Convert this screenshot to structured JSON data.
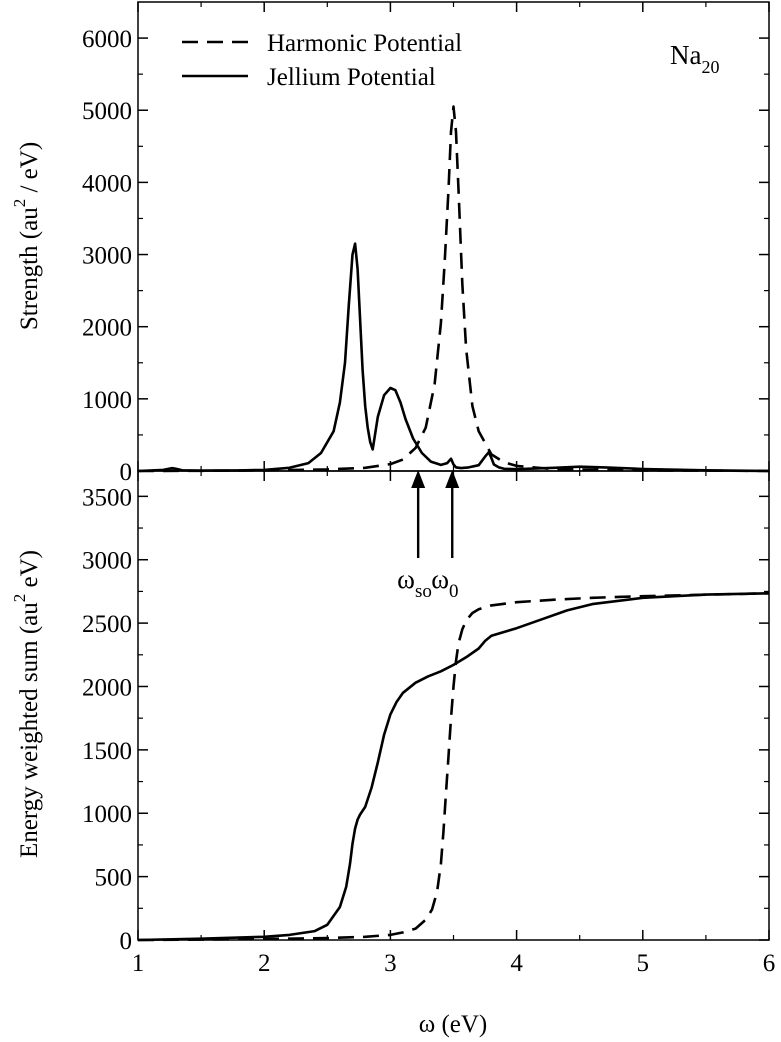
{
  "chart_data": [
    {
      "type": "line",
      "panel": "top",
      "ylabel": "Strength (au / eV)",
      "ylabel_parts": {
        "prefix": "Strength  (au",
        "sup": "2",
        "suffix": " / eV)"
      },
      "xlim": [
        1,
        6
      ],
      "ylim": [
        0,
        6500
      ],
      "yticks": [
        0,
        1000,
        2000,
        3000,
        4000,
        5000,
        6000
      ],
      "xticks": [
        1,
        2,
        3,
        4,
        5,
        6
      ],
      "grid": false,
      "legend_position": "top-left",
      "legend": [
        "Harmonic Potential",
        "Jellium Potential"
      ],
      "annotation": {
        "base": "Na",
        "sub": "20"
      },
      "series": [
        {
          "name": "Harmonic Potential",
          "style": "dashed",
          "x": [
            1.0,
            1.5,
            2.0,
            2.5,
            2.8,
            3.0,
            3.1,
            3.2,
            3.28,
            3.35,
            3.4,
            3.43,
            3.46,
            3.48,
            3.5,
            3.52,
            3.54,
            3.57,
            3.6,
            3.65,
            3.7,
            3.8,
            3.9,
            4.0,
            4.3,
            5.0,
            6.0
          ],
          "y": [
            0,
            3,
            8,
            22,
            45,
            95,
            160,
            320,
            600,
            1200,
            2050,
            2900,
            3900,
            4700,
            5050,
            4700,
            3900,
            2600,
            1700,
            900,
            550,
            230,
            120,
            70,
            25,
            8,
            2
          ]
        },
        {
          "name": "Jellium Potential",
          "style": "solid",
          "x": [
            1.0,
            1.2,
            1.27,
            1.3,
            1.35,
            1.5,
            1.8,
            2.0,
            2.2,
            2.35,
            2.45,
            2.55,
            2.6,
            2.64,
            2.67,
            2.7,
            2.72,
            2.74,
            2.76,
            2.78,
            2.8,
            2.82,
            2.84,
            2.86,
            2.9,
            2.95,
            3.0,
            3.04,
            3.08,
            3.12,
            3.18,
            3.25,
            3.32,
            3.4,
            3.45,
            3.48,
            3.5,
            3.52,
            3.56,
            3.62,
            3.7,
            3.75,
            3.78,
            3.8,
            3.82,
            3.86,
            3.9,
            4.0,
            4.3,
            4.5,
            4.7,
            5.0,
            5.5,
            6.0
          ],
          "y": [
            0,
            15,
            40,
            30,
            10,
            5,
            8,
            15,
            45,
            110,
            250,
            550,
            950,
            1500,
            2300,
            3000,
            3150,
            2800,
            2100,
            1400,
            900,
            600,
            400,
            300,
            750,
            1050,
            1150,
            1120,
            950,
            720,
            450,
            250,
            130,
            85,
            110,
            170,
            90,
            50,
            40,
            50,
            80,
            200,
            260,
            180,
            90,
            50,
            30,
            25,
            45,
            60,
            50,
            28,
            10,
            0
          ]
        }
      ]
    },
    {
      "type": "line",
      "panel": "bottom",
      "xlabel": "ω   (eV)",
      "ylabel": "Energy weighted sum (au eV)",
      "ylabel_parts": {
        "prefix": "Energy weighted sum (au",
        "sup": "2",
        "suffix": " eV)"
      },
      "xlim": [
        1,
        6
      ],
      "ylim": [
        0,
        3700
      ],
      "yticks": [
        0,
        500,
        1000,
        1500,
        2000,
        2500,
        3000,
        3500
      ],
      "xticks": [
        1,
        2,
        3,
        4,
        5,
        6
      ],
      "grid": false,
      "series": [
        {
          "name": "Harmonic Potential",
          "style": "dashed",
          "x": [
            1.0,
            1.5,
            2.0,
            2.5,
            2.8,
            3.0,
            3.1,
            3.2,
            3.28,
            3.33,
            3.37,
            3.4,
            3.42,
            3.44,
            3.46,
            3.48,
            3.5,
            3.52,
            3.54,
            3.57,
            3.6,
            3.65,
            3.7,
            3.8,
            4.0,
            4.3,
            4.6,
            5.0,
            5.5,
            6.0
          ],
          "y": [
            0,
            3,
            8,
            15,
            25,
            40,
            60,
            90,
            160,
            240,
            380,
            600,
            850,
            1150,
            1450,
            1750,
            2000,
            2200,
            2340,
            2450,
            2520,
            2580,
            2610,
            2640,
            2665,
            2685,
            2700,
            2712,
            2724,
            2735
          ]
        },
        {
          "name": "Jellium Potential",
          "style": "solid",
          "x": [
            1.0,
            1.5,
            2.0,
            2.2,
            2.4,
            2.5,
            2.6,
            2.65,
            2.68,
            2.7,
            2.72,
            2.74,
            2.76,
            2.8,
            2.85,
            2.9,
            2.95,
            3.0,
            3.05,
            3.1,
            3.2,
            3.3,
            3.4,
            3.5,
            3.6,
            3.7,
            3.75,
            3.8,
            4.0,
            4.2,
            4.4,
            4.6,
            5.0,
            5.5,
            6.0
          ],
          "y": [
            0,
            10,
            25,
            40,
            70,
            120,
            260,
            420,
            600,
            760,
            880,
            950,
            990,
            1050,
            1200,
            1400,
            1620,
            1780,
            1880,
            1950,
            2030,
            2080,
            2120,
            2170,
            2230,
            2300,
            2360,
            2400,
            2460,
            2530,
            2600,
            2650,
            2700,
            2725,
            2735
          ]
        }
      ],
      "annotations": [
        {
          "base": "ω",
          "sub": "so",
          "x": 3.22
        },
        {
          "base": "ω",
          "sub": "0",
          "x": 3.49
        }
      ]
    }
  ]
}
